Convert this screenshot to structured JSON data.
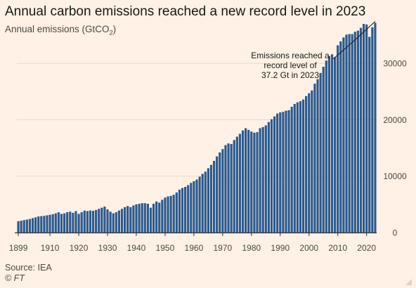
{
  "title": "Annual carbon emissions reached a new record level in 2023",
  "subtitle_text": "Annual emissions (GtCO",
  "subtitle_subscript": "2",
  "subtitle_close": ")",
  "source": "Source: IEA",
  "credit": "© FT",
  "colors": {
    "background": "#fff1e5",
    "bar": "#2b5a8e",
    "grid": "#e8d9cb",
    "axis": "#33302e",
    "text": "#4d4845"
  },
  "chart_data": {
    "type": "bar",
    "x_start": 1899,
    "x_end": 2023,
    "x_ticks": [
      "1899",
      "1910",
      "1920",
      "1930",
      "1940",
      "1950",
      "1960",
      "1970",
      "1980",
      "1990",
      "2000",
      "2010",
      "2020"
    ],
    "y_ticks": [
      "0",
      "10000",
      "20000",
      "30000"
    ],
    "ylim": [
      0,
      38000
    ],
    "y_axis_side": "right",
    "grid": true,
    "annotation": {
      "lines": [
        "Emissions reached a",
        "record level of",
        "37.2 Gt in 2023"
      ],
      "target_year": 2023
    },
    "values": [
      2000,
      2100,
      2200,
      2300,
      2400,
      2550,
      2700,
      2850,
      2900,
      2950,
      3050,
      3150,
      3250,
      3400,
      3600,
      3300,
      3400,
      3600,
      3700,
      3500,
      3800,
      3300,
      3600,
      3900,
      3800,
      3900,
      3850,
      4000,
      4200,
      4400,
      4600,
      4100,
      3700,
      3400,
      3600,
      3900,
      4200,
      4500,
      4700,
      4500,
      4800,
      5000,
      5100,
      5200,
      5200,
      5100,
      4400,
      5100,
      5500,
      5300,
      5800,
      6200,
      6400,
      6500,
      6700,
      7100,
      7600,
      7900,
      8100,
      8400,
      8800,
      9100,
      9400,
      9900,
      10400,
      10800,
      11400,
      12000,
      12700,
      13500,
      14200,
      14800,
      15500,
      15800,
      15700,
      16400,
      17000,
      17500,
      18100,
      18500,
      18200,
      17900,
      17700,
      17800,
      18500,
      18700,
      19000,
      19600,
      20100,
      20600,
      21100,
      21300,
      21400,
      21600,
      21700,
      22300,
      22800,
      23100,
      23300,
      23600,
      24200,
      24700,
      25200,
      26400,
      27200,
      28300,
      29400,
      30500,
      31300,
      31600,
      31100,
      33200,
      33900,
      34600,
      35100,
      35200,
      35200,
      35600,
      35800,
      36300,
      37000,
      36900,
      34700,
      36400,
      37200
    ]
  }
}
